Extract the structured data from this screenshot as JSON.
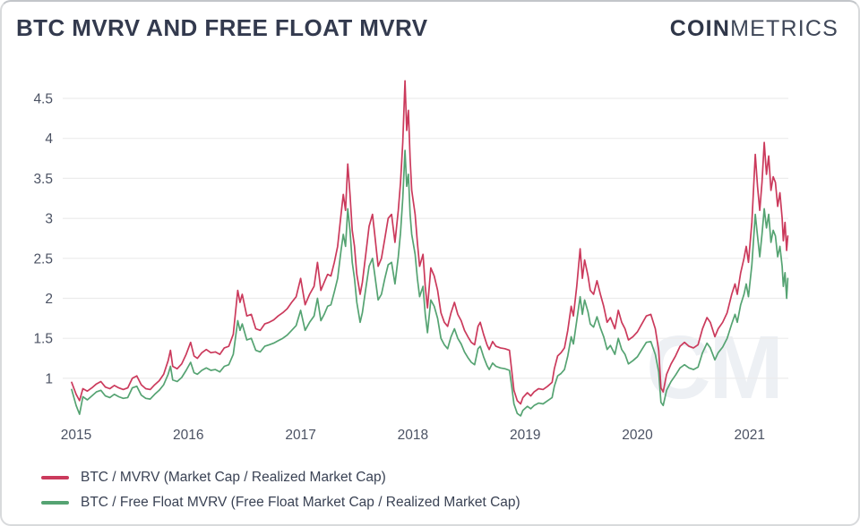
{
  "header": {
    "title": "BTC MVRV AND FREE FLOAT MVRV",
    "logo_bold": "COIN",
    "logo_light": "METRICS"
  },
  "watermark": "CM",
  "chart_data": {
    "type": "line",
    "title": "BTC MVRV AND FREE FLOAT MVRV",
    "xlabel": "",
    "ylabel": "",
    "x_ticks": [
      2015,
      2016,
      2017,
      2018,
      2019,
      2020,
      2021
    ],
    "y_ticks": [
      1,
      1.5,
      2,
      2.5,
      3,
      3.5,
      4,
      4.5
    ],
    "xlim": [
      2014.96,
      2021.38
    ],
    "ylim": [
      0.45,
      4.85
    ],
    "grid": "horizontal",
    "legend_position": "bottom-left",
    "grid_color": "#ececec",
    "axis_color": "#4b5263",
    "watermark_color": "#edf0f4",
    "x": [
      2014.96,
      2015.0,
      2015.03,
      2015.06,
      2015.1,
      2015.14,
      2015.18,
      2015.22,
      2015.26,
      2015.3,
      2015.34,
      2015.38,
      2015.42,
      2015.46,
      2015.5,
      2015.54,
      2015.58,
      2015.62,
      2015.66,
      2015.7,
      2015.74,
      2015.78,
      2015.82,
      2015.84,
      2015.86,
      2015.9,
      2015.94,
      2015.98,
      2016.02,
      2016.05,
      2016.08,
      2016.12,
      2016.16,
      2016.2,
      2016.24,
      2016.28,
      2016.32,
      2016.36,
      2016.4,
      2016.44,
      2016.46,
      2016.48,
      2016.52,
      2016.56,
      2016.6,
      2016.64,
      2016.68,
      2016.72,
      2016.76,
      2016.8,
      2016.84,
      2016.88,
      2016.92,
      2016.96,
      2017.0,
      2017.04,
      2017.08,
      2017.12,
      2017.15,
      2017.18,
      2017.21,
      2017.24,
      2017.27,
      2017.3,
      2017.33,
      2017.36,
      2017.38,
      2017.4,
      2017.42,
      2017.44,
      2017.46,
      2017.48,
      2017.5,
      2017.53,
      2017.55,
      2017.58,
      2017.61,
      2017.64,
      2017.66,
      2017.69,
      2017.72,
      2017.75,
      2017.78,
      2017.81,
      2017.84,
      2017.87,
      2017.89,
      2017.91,
      2017.93,
      2017.945,
      2017.96,
      2017.975,
      2017.99,
      2018.02,
      2018.04,
      2018.06,
      2018.09,
      2018.11,
      2018.13,
      2018.16,
      2018.19,
      2018.22,
      2018.25,
      2018.28,
      2018.31,
      2018.34,
      2018.37,
      2018.4,
      2018.43,
      2018.46,
      2018.49,
      2018.52,
      2018.55,
      2018.58,
      2018.6,
      2018.63,
      2018.66,
      2018.68,
      2018.71,
      2018.74,
      2018.78,
      2018.82,
      2018.86,
      2018.88,
      2018.9,
      2018.93,
      2018.96,
      2018.98,
      2019.02,
      2019.05,
      2019.08,
      2019.12,
      2019.16,
      2019.2,
      2019.24,
      2019.26,
      2019.29,
      2019.32,
      2019.35,
      2019.38,
      2019.41,
      2019.43,
      2019.46,
      2019.49,
      2019.51,
      2019.53,
      2019.56,
      2019.58,
      2019.61,
      2019.64,
      2019.67,
      2019.7,
      2019.73,
      2019.76,
      2019.8,
      2019.83,
      2019.86,
      2019.89,
      2019.92,
      2019.96,
      2020.0,
      2020.04,
      2020.08,
      2020.12,
      2020.16,
      2020.19,
      2020.21,
      2020.23,
      2020.26,
      2020.3,
      2020.34,
      2020.38,
      2020.42,
      2020.46,
      2020.5,
      2020.54,
      2020.58,
      2020.62,
      2020.65,
      2020.69,
      2020.72,
      2020.76,
      2020.8,
      2020.84,
      2020.87,
      2020.89,
      2020.92,
      2020.95,
      2020.97,
      2020.99,
      2021.02,
      2021.05,
      2021.07,
      2021.09,
      2021.11,
      2021.13,
      2021.15,
      2021.17,
      2021.19,
      2021.21,
      2021.23,
      2021.25,
      2021.27,
      2021.29,
      2021.3,
      2021.315,
      2021.33,
      2021.34
    ],
    "series": [
      {
        "id": "btc-mvrv",
        "name": "BTC / MVRV (Market Cap / Realized Market Cap)",
        "color": "#cb3a5c",
        "values": [
          0.95,
          0.8,
          0.72,
          0.87,
          0.84,
          0.88,
          0.93,
          0.96,
          0.89,
          0.87,
          0.91,
          0.88,
          0.86,
          0.88,
          1.0,
          1.03,
          0.92,
          0.87,
          0.86,
          0.92,
          0.97,
          1.05,
          1.22,
          1.35,
          1.15,
          1.12,
          1.18,
          1.3,
          1.45,
          1.28,
          1.25,
          1.32,
          1.36,
          1.32,
          1.33,
          1.3,
          1.38,
          1.4,
          1.55,
          2.1,
          1.95,
          2.05,
          1.78,
          1.8,
          1.62,
          1.6,
          1.68,
          1.7,
          1.73,
          1.78,
          1.82,
          1.87,
          1.95,
          2.02,
          2.25,
          1.92,
          2.05,
          2.15,
          2.45,
          2.1,
          2.2,
          2.3,
          2.28,
          2.45,
          2.65,
          3.05,
          3.3,
          3.1,
          3.68,
          3.3,
          2.85,
          2.65,
          2.3,
          2.05,
          2.2,
          2.55,
          2.9,
          3.05,
          2.8,
          2.4,
          2.5,
          2.75,
          3.0,
          3.05,
          2.7,
          3.1,
          3.45,
          3.95,
          4.72,
          4.1,
          4.35,
          3.75,
          3.35,
          3.05,
          2.7,
          2.4,
          2.55,
          2.15,
          1.88,
          2.38,
          2.28,
          2.1,
          1.82,
          1.7,
          1.65,
          1.82,
          1.95,
          1.8,
          1.72,
          1.6,
          1.52,
          1.45,
          1.42,
          1.65,
          1.7,
          1.55,
          1.42,
          1.36,
          1.46,
          1.4,
          1.38,
          1.37,
          1.35,
          1.1,
          0.85,
          0.72,
          0.68,
          0.76,
          0.82,
          0.78,
          0.83,
          0.87,
          0.86,
          0.9,
          0.95,
          1.12,
          1.28,
          1.32,
          1.38,
          1.6,
          1.9,
          1.78,
          2.15,
          2.62,
          2.25,
          2.48,
          2.28,
          2.1,
          2.05,
          2.22,
          2.05,
          1.9,
          1.7,
          1.76,
          1.62,
          1.85,
          1.7,
          1.62,
          1.48,
          1.52,
          1.58,
          1.68,
          1.78,
          1.8,
          1.62,
          1.35,
          0.88,
          0.83,
          1.05,
          1.18,
          1.28,
          1.4,
          1.45,
          1.4,
          1.38,
          1.42,
          1.62,
          1.76,
          1.7,
          1.52,
          1.62,
          1.7,
          1.82,
          2.05,
          2.18,
          2.05,
          2.32,
          2.5,
          2.65,
          2.45,
          2.95,
          3.8,
          3.4,
          3.1,
          3.45,
          3.95,
          3.55,
          3.78,
          3.35,
          3.52,
          3.45,
          3.15,
          3.32,
          3.0,
          2.72,
          2.95,
          2.6,
          2.78
        ]
      },
      {
        "id": "btc-free-float-mvrv",
        "name": "BTC / Free Float MVRV (Free Float Market Cap / Realized Market Cap)",
        "color": "#55a372",
        "values": [
          0.86,
          0.66,
          0.55,
          0.77,
          0.73,
          0.78,
          0.83,
          0.85,
          0.78,
          0.76,
          0.8,
          0.77,
          0.75,
          0.76,
          0.88,
          0.9,
          0.79,
          0.75,
          0.74,
          0.8,
          0.85,
          0.92,
          1.05,
          1.15,
          0.98,
          0.96,
          1.01,
          1.1,
          1.2,
          1.07,
          1.05,
          1.1,
          1.13,
          1.1,
          1.11,
          1.08,
          1.15,
          1.17,
          1.3,
          1.72,
          1.6,
          1.68,
          1.48,
          1.5,
          1.35,
          1.33,
          1.4,
          1.42,
          1.44,
          1.47,
          1.5,
          1.54,
          1.6,
          1.66,
          1.85,
          1.6,
          1.7,
          1.78,
          2.0,
          1.72,
          1.8,
          1.9,
          1.92,
          2.08,
          2.25,
          2.6,
          2.8,
          2.65,
          3.12,
          2.85,
          2.45,
          2.25,
          1.95,
          1.7,
          1.82,
          2.12,
          2.4,
          2.5,
          2.3,
          1.98,
          2.05,
          2.25,
          2.42,
          2.45,
          2.18,
          2.52,
          2.82,
          3.25,
          3.85,
          3.4,
          3.55,
          3.05,
          2.8,
          2.55,
          2.25,
          2.02,
          2.15,
          1.8,
          1.57,
          1.98,
          1.9,
          1.75,
          1.5,
          1.42,
          1.37,
          1.52,
          1.62,
          1.5,
          1.43,
          1.33,
          1.26,
          1.2,
          1.17,
          1.37,
          1.4,
          1.27,
          1.16,
          1.11,
          1.19,
          1.15,
          1.13,
          1.12,
          1.1,
          0.9,
          0.68,
          0.56,
          0.53,
          0.6,
          0.65,
          0.62,
          0.66,
          0.69,
          0.68,
          0.72,
          0.76,
          0.9,
          1.03,
          1.06,
          1.11,
          1.28,
          1.52,
          1.43,
          1.72,
          2.02,
          1.8,
          1.98,
          1.83,
          1.68,
          1.64,
          1.77,
          1.63,
          1.52,
          1.36,
          1.41,
          1.3,
          1.5,
          1.36,
          1.3,
          1.18,
          1.22,
          1.27,
          1.36,
          1.45,
          1.46,
          1.3,
          1.08,
          0.7,
          0.66,
          0.85,
          0.96,
          1.04,
          1.13,
          1.17,
          1.13,
          1.11,
          1.14,
          1.32,
          1.44,
          1.38,
          1.23,
          1.32,
          1.39,
          1.5,
          1.68,
          1.8,
          1.7,
          1.92,
          2.05,
          2.18,
          2.02,
          2.42,
          3.05,
          2.78,
          2.52,
          2.8,
          3.12,
          2.88,
          3.05,
          2.7,
          2.85,
          2.78,
          2.52,
          2.65,
          2.4,
          2.15,
          2.32,
          2.0,
          2.25
        ]
      }
    ]
  }
}
